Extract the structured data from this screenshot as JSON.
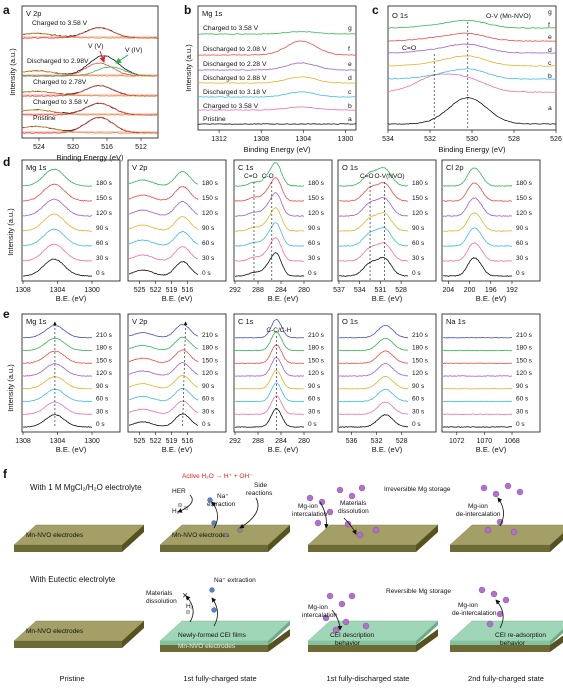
{
  "panels": {
    "a": {
      "letter": "a",
      "title": "V 2p",
      "xlabel": "Binding Energy (eV)",
      "ylabel": "Intensity (a.u.)",
      "xticks": [
        "524",
        "520",
        "516",
        "512"
      ],
      "xlim": [
        526,
        510
      ],
      "annotations": [
        "V (V)",
        "V (IV)"
      ],
      "labels": [
        "Charged to 3.58 V",
        "Discharged to 2.98V",
        "Charged to 2.78V",
        "Charged to 3.58 V",
        "Pristine"
      ]
    },
    "b": {
      "letter": "b",
      "title": "Mg 1s",
      "xlabel": "Binding Energy (eV)",
      "ylabel": "Intensity (a.u.)",
      "xticks": [
        "1312",
        "1308",
        "1304",
        "1300"
      ],
      "xlim": [
        1314,
        1299
      ],
      "labels": [
        "Charged to 3.58 V",
        "Discharged to 2.08 V",
        "Discharged to 2.28 V",
        "Discharged to 2.88 V",
        "Discharged to 3.18 V",
        "Charged to 3.58 V",
        "Pristine"
      ],
      "letters": [
        "g",
        "f",
        "e",
        "d",
        "c",
        "b",
        "a"
      ]
    },
    "c": {
      "letter": "c",
      "title": "O 1s",
      "xlabel": "Binding Energy (eV)",
      "xticks": [
        "534",
        "532",
        "530",
        "528",
        "526"
      ],
      "xlim": [
        534,
        526
      ],
      "annotations": [
        "O-V (Mn-NVO)",
        "C=O"
      ],
      "letters": [
        "g",
        "f",
        "e",
        "d",
        "c",
        "b",
        "a"
      ]
    },
    "d": {
      "letter": "d",
      "xlabel": "B.E. (eV)",
      "ylabel": "Intensity (a.u.)",
      "times": [
        "180 s",
        "150 s",
        "120 s",
        "90 s",
        "60 s",
        "30 s",
        "0 s"
      ],
      "sub": [
        {
          "title": "Mg 1s",
          "xticks": [
            "1308",
            "1304",
            "1300"
          ],
          "xlim": [
            1308,
            1300
          ]
        },
        {
          "title": "V 2p",
          "xticks": [
            "525",
            "522",
            "519",
            "516"
          ],
          "xlim": [
            527,
            514
          ]
        },
        {
          "title": "C 1s",
          "xticks": [
            "292",
            "288",
            "284",
            "280"
          ],
          "xlim": [
            292,
            280
          ],
          "annotations": [
            "C=O",
            "C-O"
          ]
        },
        {
          "title": "O 1s",
          "xticks": [
            "537",
            "534",
            "531",
            "528"
          ],
          "xlim": [
            537,
            527
          ],
          "annotations": [
            "C=O",
            "O-V(NVO)"
          ]
        },
        {
          "title": "Cl 2p",
          "xticks": [
            "204",
            "200",
            "196",
            "192"
          ],
          "xlim": [
            205,
            192
          ]
        }
      ]
    },
    "e": {
      "letter": "e",
      "xlabel": "B.E. (eV)",
      "ylabel": "Intensity (a.u.)",
      "times": [
        "210 s",
        "180 s",
        "150 s",
        "120 s",
        "90 s",
        "60 s",
        "30 s",
        "0 s"
      ],
      "sub": [
        {
          "title": "Mg 1s",
          "xticks": [
            "1308",
            "1304",
            "1300"
          ],
          "xlim": [
            1308,
            1300
          ]
        },
        {
          "title": "V 2p",
          "xticks": [
            "525",
            "522",
            "519",
            "516"
          ],
          "xlim": [
            527,
            514
          ]
        },
        {
          "title": "C 1s",
          "xticks": [
            "292",
            "288",
            "284",
            "280"
          ],
          "xlim": [
            292,
            280
          ],
          "annotations": [
            "C-C/C-H"
          ]
        },
        {
          "title": "O 1s",
          "xticks": [
            "536",
            "532",
            "528"
          ],
          "xlim": [
            538,
            527
          ]
        },
        {
          "title": "Na 1s",
          "xticks": [
            "1072",
            "1070",
            "1068"
          ],
          "xlim": [
            1073,
            1068
          ]
        }
      ]
    },
    "f": {
      "letter": "f",
      "row1_title": "With 1 M MgCl₂/H₂O electrolyte",
      "row2_title": "With Eutectic electrolyte",
      "electrode_label": "Mn-NVO electrodes",
      "cei_label": "Newly-formed CEI films",
      "reaction": "Active H₂O → H⁺ + OH⁻",
      "captions": [
        "Pristine",
        "1st fully-charged state",
        "1st fully-discharged state",
        "2nd fully-charged state"
      ],
      "row1": {
        "s2": [
          "HER",
          "H₂",
          "Na⁺",
          "extraction",
          "Side",
          "reactions"
        ],
        "s3": [
          "Mg-ion",
          "intercalation",
          "Materials",
          "dissolution"
        ],
        "s4": [
          "Mg-ion",
          "de-intercalation"
        ],
        "mid": "Irreversible Mg storage"
      },
      "row2": {
        "s2": [
          "Materials",
          "dissolution",
          "H₂",
          "Na⁺ extraction"
        ],
        "s3": [
          "Mg-ion",
          "intercalation",
          "CEI description",
          "behavior"
        ],
        "s4": [
          "Mg-ion",
          "de-intercalation",
          "CEI re-adsorption",
          "behavior"
        ],
        "mid": "Reversible Mg storage"
      }
    }
  },
  "colors": {
    "series": [
      "#000000",
      "#f06a9e",
      "#37b8e5",
      "#e3b020",
      "#9b57c9",
      "#e8453c",
      "#2bb04c",
      "#3b46c8"
    ],
    "electrode_top": "#a39f67",
    "electrode_side": "#6e6a35",
    "cei": "#9fd6b7",
    "mg_ion": "#b26fd0",
    "na_ion": "#4f86c7",
    "reaction": "#e82020"
  },
  "chart_data": [
    {
      "panel": "a",
      "type": "line",
      "title": "V 2p",
      "xlabel": "Binding Energy (eV)",
      "ylabel": "Intensity (a.u.)",
      "xlim": [
        526,
        510
      ],
      "x_unit": "eV",
      "series": [
        {
          "name": "Pristine",
          "peaks": [
            [
              516.9,
              0.6,
              1.6
            ],
            [
              524.4,
              0.25,
              2.2
            ]
          ]
        },
        {
          "name": "Charged to 3.58 V",
          "peaks": [
            [
              516.9,
              0.45,
              1.6
            ],
            [
              524.4,
              0.2,
              2.2
            ]
          ]
        },
        {
          "name": "Charged to 2.78V",
          "peaks": [
            [
              516.9,
              0.4,
              1.6
            ],
            [
              524.4,
              0.18,
              2.2
            ]
          ]
        },
        {
          "name": "Discharged to 2.98V",
          "peaks": [
            [
              516.9,
              0.5,
              1.6
            ],
            [
              515.6,
              0.35,
              1.6
            ],
            [
              524.4,
              0.2,
              2.2
            ]
          ]
        },
        {
          "name": "Charged to 3.58 V",
          "peaks": [
            [
              516.9,
              0.4,
              1.6
            ],
            [
              524.4,
              0.18,
              2.2
            ]
          ]
        }
      ]
    },
    {
      "panel": "b",
      "type": "line",
      "title": "Mg 1s",
      "xlabel": "Binding Energy (eV)",
      "ylabel": "Intensity (a.u.)",
      "xlim": [
        1314,
        1299
      ],
      "x_unit": "eV",
      "series": [
        {
          "name": "Pristine",
          "peaks": []
        },
        {
          "name": "Charged to 3.58 V",
          "peaks": [
            [
              1304.2,
              0.15,
              1.4
            ]
          ]
        },
        {
          "name": "Discharged to 3.18 V",
          "peaks": [
            [
              1304.2,
              0.25,
              1.4
            ]
          ]
        },
        {
          "name": "Discharged to 2.88 V",
          "peaks": [
            [
              1304.2,
              0.3,
              1.4
            ]
          ]
        },
        {
          "name": "Discharged to 2.28 V",
          "peaks": [
            [
              1304.2,
              0.35,
              1.4
            ]
          ]
        },
        {
          "name": "Discharged to 2.08 V",
          "peaks": [
            [
              1304.2,
              0.7,
              1.4
            ]
          ]
        },
        {
          "name": "Charged to 3.58 V",
          "peaks": [
            [
              1304.2,
              0.12,
              1.4
            ]
          ]
        }
      ]
    },
    {
      "panel": "c",
      "type": "line",
      "title": "O 1s",
      "xlabel": "Binding Energy (eV)",
      "xlim": [
        534,
        526
      ],
      "x_unit": "eV",
      "series": [
        {
          "name": "a",
          "peaks": [
            [
              530.2,
              1.1,
              0.9
            ]
          ]
        },
        {
          "name": "b",
          "peaks": [
            [
              530.2,
              0.5,
              0.9
            ],
            [
              531.8,
              0.6,
              0.9
            ]
          ]
        },
        {
          "name": "c",
          "peaks": [
            [
              530.2,
              0.4,
              0.9
            ],
            [
              531.8,
              0.1,
              0.9
            ]
          ]
        },
        {
          "name": "d",
          "peaks": [
            [
              530.2,
              0.4,
              0.9
            ],
            [
              531.8,
              0.1,
              0.9
            ]
          ]
        },
        {
          "name": "e",
          "peaks": [
            [
              530.2,
              0.35,
              0.9
            ],
            [
              531.8,
              0.1,
              0.9
            ]
          ]
        },
        {
          "name": "f",
          "peaks": [
            [
              530.2,
              0.3,
              0.9
            ],
            [
              531.8,
              0.1,
              0.9
            ]
          ]
        },
        {
          "name": "g",
          "peaks": [
            [
              530.2,
              0.3,
              0.9
            ],
            [
              531.8,
              0.08,
              0.9
            ]
          ]
        }
      ]
    },
    {
      "panel": "d",
      "type": "line",
      "xlabel": "B.E. (eV)",
      "ylabel": "Intensity (a.u.)",
      "series_names": [
        "0 s",
        "30 s",
        "60 s",
        "90 s",
        "120 s",
        "150 s",
        "180 s"
      ],
      "subplots": [
        {
          "title": "Mg 1s",
          "peaks": [
            [
              1304.4,
              0.7,
              1.2
            ]
          ]
        },
        {
          "title": "V 2p",
          "peaks": [
            [
              516.9,
              0.6,
              1.4
            ],
            [
              524.4,
              0.25,
              1.8
            ]
          ]
        },
        {
          "title": "C 1s",
          "peaks": [
            [
              284.8,
              0.9,
              0.9
            ],
            [
              286.4,
              0.3,
              0.9
            ],
            [
              288.7,
              0.15,
              0.9
            ]
          ]
        },
        {
          "title": "O 1s",
          "peaks": [
            [
              530.4,
              0.7,
              1.0
            ],
            [
              532.5,
              0.5,
              1.0
            ]
          ]
        },
        {
          "title": "Cl 2p",
          "peaks": [
            [
              199.6,
              0.55,
              1.0
            ],
            [
              198.2,
              0.4,
              1.0
            ]
          ]
        }
      ]
    },
    {
      "panel": "e",
      "type": "line",
      "xlabel": "B.E. (eV)",
      "ylabel": "Intensity (a.u.)",
      "series_names": [
        "0 s",
        "30 s",
        "60 s",
        "90 s",
        "120 s",
        "150 s",
        "180 s",
        "210 s"
      ],
      "subplots": [
        {
          "title": "Mg 1s",
          "peaks": [
            [
              1304.3,
              0.6,
              1.1
            ]
          ]
        },
        {
          "title": "V 2p",
          "peaks": [
            [
              516.9,
              0.65,
              1.4
            ],
            [
              524.4,
              0.25,
              1.8
            ]
          ]
        },
        {
          "title": "C 1s",
          "peaks": [
            [
              284.8,
              0.9,
              0.9
            ]
          ]
        },
        {
          "title": "O 1s",
          "peaks": [
            [
              530.6,
              0.6,
              1.2
            ]
          ]
        },
        {
          "title": "Na 1s",
          "peaks": []
        }
      ]
    }
  ]
}
